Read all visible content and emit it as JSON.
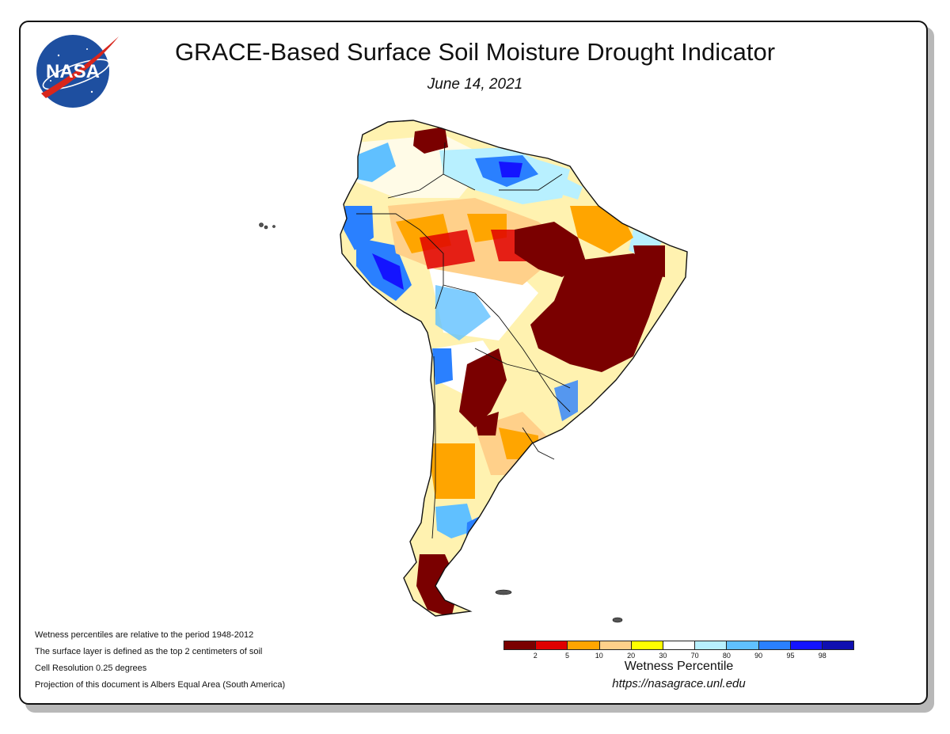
{
  "title": "GRACE-Based Surface Soil Moisture Drought Indicator",
  "date": "June 14, 2021",
  "logo": {
    "text": "NASA",
    "icon": "nasa-meatball-logo"
  },
  "notes": [
    "Wetness percentiles are relative to the period 1948-2012",
    "The surface layer is defined as the top 2 centimeters of soil",
    "Cell Resolution 0.25 degrees",
    "Projection of this document is Albers Equal Area (South America)"
  ],
  "legend": {
    "title": "Wetness Percentile",
    "url": "https://nasagrace.unl.edu",
    "colors": [
      "#7a0000",
      "#e00000",
      "#ffa500",
      "#ffd08a",
      "#ffff00",
      "#ffffff",
      "#b8f0ff",
      "#60c0ff",
      "#2a80ff",
      "#1414ff",
      "#1010b0"
    ],
    "ticks": [
      "2",
      "5",
      "10",
      "20",
      "30",
      "70",
      "80",
      "90",
      "95",
      "98"
    ]
  },
  "map": {
    "region": "South America",
    "colors": {
      "extreme_dry": "#7a0000",
      "very_dry": "#e00000",
      "dry": "#ffa500",
      "moderately_dry": "#ffd08a",
      "slightly_dry": "#ffff00",
      "normal": "#ffffff",
      "slightly_wet": "#b8f0ff",
      "wet": "#60c0ff",
      "very_wet": "#2a80ff",
      "extreme_wet": "#1414ff"
    }
  }
}
